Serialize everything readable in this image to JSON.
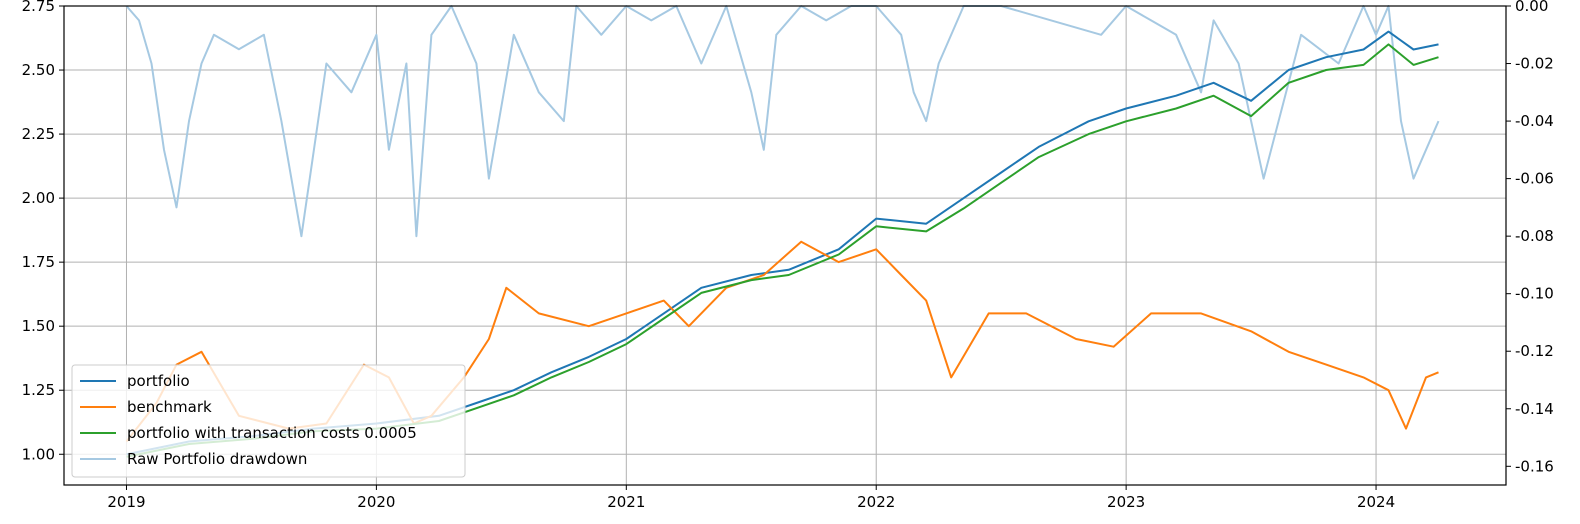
{
  "chart_data": {
    "type": "line",
    "title": "",
    "xlabel": "",
    "ylabel": "",
    "y2label": "",
    "grid": true,
    "legend_position": "lower-left",
    "x_range": [
      2018.75,
      2024.52
    ],
    "ylim": [
      0.88,
      2.75
    ],
    "y2lim": [
      -0.1665,
      0.0
    ],
    "x_ticks": [
      {
        "value": 2019,
        "label": "2019"
      },
      {
        "value": 2020,
        "label": "2020"
      },
      {
        "value": 2021,
        "label": "2021"
      },
      {
        "value": 2022,
        "label": "2022"
      },
      {
        "value": 2023,
        "label": "2023"
      },
      {
        "value": 2024,
        "label": "2024"
      }
    ],
    "y_ticks": [
      {
        "value": 1.0,
        "label": "1.00"
      },
      {
        "value": 1.25,
        "label": "1.25"
      },
      {
        "value": 1.5,
        "label": "1.50"
      },
      {
        "value": 1.75,
        "label": "1.75"
      },
      {
        "value": 2.0,
        "label": "2.00"
      },
      {
        "value": 2.25,
        "label": "2.25"
      },
      {
        "value": 2.5,
        "label": "2.50"
      },
      {
        "value": 2.75,
        "label": "2.75"
      }
    ],
    "y2_ticks": [
      {
        "value": 0.0,
        "label": "0.00"
      },
      {
        "value": -0.02,
        "label": "-0.02"
      },
      {
        "value": -0.04,
        "label": "-0.04"
      },
      {
        "value": -0.06,
        "label": "-0.06"
      },
      {
        "value": -0.08,
        "label": "-0.08"
      },
      {
        "value": -0.1,
        "label": "-0.10"
      },
      {
        "value": -0.12,
        "label": "-0.12"
      },
      {
        "value": -0.14,
        "label": "-0.14"
      },
      {
        "value": -0.16,
        "label": "-0.16"
      }
    ],
    "series": [
      {
        "name": "portfolio",
        "axis": "left",
        "color": "#1f77b4",
        "x": [
          2019.0,
          2019.25,
          2019.5,
          2019.75,
          2020.0,
          2020.25,
          2020.4,
          2020.55,
          2020.7,
          2020.85,
          2021.0,
          2021.15,
          2021.3,
          2021.5,
          2021.65,
          2021.85,
          2022.0,
          2022.2,
          2022.35,
          2022.5,
          2022.65,
          2022.85,
          2023.0,
          2023.2,
          2023.35,
          2023.5,
          2023.65,
          2023.8,
          2023.95,
          2024.05,
          2024.15,
          2024.25
        ],
        "y": [
          1.0,
          1.05,
          1.07,
          1.1,
          1.12,
          1.15,
          1.2,
          1.25,
          1.32,
          1.38,
          1.45,
          1.55,
          1.65,
          1.7,
          1.72,
          1.8,
          1.92,
          1.9,
          2.0,
          2.1,
          2.2,
          2.3,
          2.35,
          2.4,
          2.45,
          2.38,
          2.5,
          2.55,
          2.58,
          2.65,
          2.58,
          2.6
        ]
      },
      {
        "name": "benchmark",
        "axis": "left",
        "color": "#ff7f0e",
        "x": [
          2019.0,
          2019.12,
          2019.2,
          2019.3,
          2019.45,
          2019.65,
          2019.8,
          2019.95,
          2020.05,
          2020.15,
          2020.22,
          2020.35,
          2020.45,
          2020.52,
          2020.65,
          2020.85,
          2021.0,
          2021.15,
          2021.25,
          2021.4,
          2021.55,
          2021.7,
          2021.85,
          2022.0,
          2022.1,
          2022.2,
          2022.3,
          2022.45,
          2022.6,
          2022.8,
          2022.95,
          2023.1,
          2023.3,
          2023.5,
          2023.65,
          2023.8,
          2023.95,
          2024.05,
          2024.12,
          2024.2,
          2024.25
        ],
        "y": [
          1.05,
          1.2,
          1.35,
          1.4,
          1.15,
          1.1,
          1.12,
          1.35,
          1.3,
          1.12,
          1.15,
          1.3,
          1.45,
          1.65,
          1.55,
          1.5,
          1.55,
          1.6,
          1.5,
          1.65,
          1.7,
          1.83,
          1.75,
          1.8,
          1.7,
          1.6,
          1.3,
          1.55,
          1.55,
          1.45,
          1.42,
          1.55,
          1.55,
          1.48,
          1.4,
          1.35,
          1.3,
          1.25,
          1.1,
          1.3,
          1.32
        ]
      },
      {
        "name": "portfolio with transaction costs 0.0005",
        "axis": "left",
        "color": "#2ca02c",
        "x": [
          2019.0,
          2019.25,
          2019.5,
          2019.75,
          2020.0,
          2020.25,
          2020.4,
          2020.55,
          2020.7,
          2020.85,
          2021.0,
          2021.15,
          2021.3,
          2021.5,
          2021.65,
          2021.85,
          2022.0,
          2022.2,
          2022.35,
          2022.5,
          2022.65,
          2022.85,
          2023.0,
          2023.2,
          2023.35,
          2023.5,
          2023.65,
          2023.8,
          2023.95,
          2024.05,
          2024.15,
          2024.25
        ],
        "y": [
          0.99,
          1.04,
          1.06,
          1.09,
          1.1,
          1.13,
          1.18,
          1.23,
          1.3,
          1.36,
          1.43,
          1.53,
          1.63,
          1.68,
          1.7,
          1.78,
          1.89,
          1.87,
          1.96,
          2.06,
          2.16,
          2.25,
          2.3,
          2.35,
          2.4,
          2.32,
          2.45,
          2.5,
          2.52,
          2.6,
          2.52,
          2.55
        ]
      },
      {
        "name": "Raw Portfolio drawdown",
        "axis": "right",
        "color": "#a6c9e2",
        "x": [
          2019.0,
          2019.05,
          2019.1,
          2019.15,
          2019.2,
          2019.25,
          2019.3,
          2019.35,
          2019.45,
          2019.55,
          2019.62,
          2019.7,
          2019.8,
          2019.9,
          2020.0,
          2020.05,
          2020.12,
          2020.16,
          2020.22,
          2020.3,
          2020.4,
          2020.45,
          2020.55,
          2020.65,
          2020.75,
          2020.8,
          2020.9,
          2021.0,
          2021.1,
          2021.2,
          2021.3,
          2021.4,
          2021.5,
          2021.55,
          2021.6,
          2021.7,
          2021.8,
          2021.9,
          2022.0,
          2022.1,
          2022.15,
          2022.2,
          2022.25,
          2022.35,
          2022.5,
          2022.7,
          2022.9,
          2023.0,
          2023.1,
          2023.2,
          2023.3,
          2023.35,
          2023.45,
          2023.55,
          2023.7,
          2023.85,
          2023.95,
          2024.0,
          2024.05,
          2024.1,
          2024.15,
          2024.2,
          2024.25
        ],
        "y": [
          0.0,
          -0.005,
          -0.02,
          -0.05,
          -0.07,
          -0.04,
          -0.02,
          -0.01,
          -0.015,
          -0.01,
          -0.04,
          -0.08,
          -0.02,
          -0.03,
          -0.01,
          -0.05,
          -0.02,
          -0.08,
          -0.01,
          0.0,
          -0.02,
          -0.06,
          -0.01,
          -0.03,
          -0.04,
          0.0,
          -0.01,
          0.0,
          -0.005,
          0.0,
          -0.02,
          0.0,
          -0.03,
          -0.05,
          -0.01,
          0.0,
          -0.005,
          0.0,
          0.0,
          -0.01,
          -0.03,
          -0.04,
          -0.02,
          0.0,
          0.0,
          -0.005,
          -0.01,
          0.0,
          -0.005,
          -0.01,
          -0.03,
          -0.005,
          -0.02,
          -0.06,
          -0.01,
          -0.02,
          0.0,
          -0.01,
          0.0,
          -0.04,
          -0.06,
          -0.05,
          -0.04
        ]
      }
    ]
  }
}
